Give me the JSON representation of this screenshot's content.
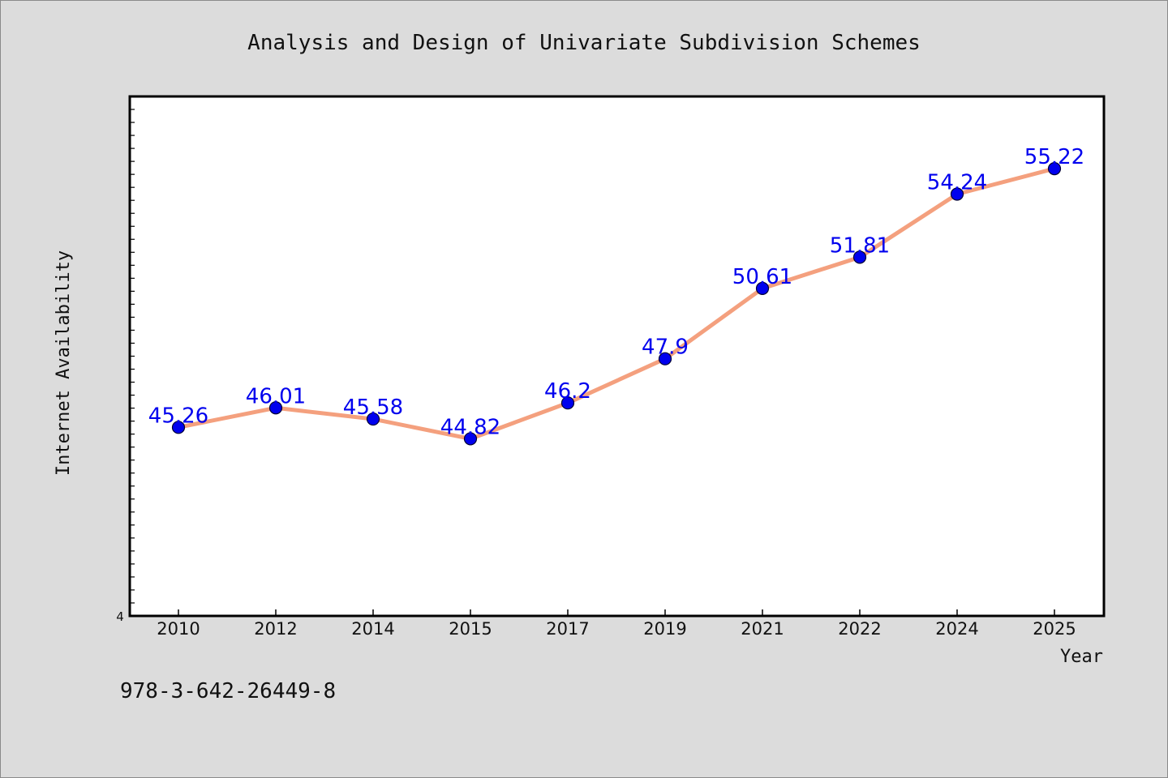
{
  "chart_data": {
    "type": "line",
    "title": "Analysis and Design of Univariate Subdivision Schemes",
    "xlabel": "Year",
    "ylabel": "Internet Availability",
    "categories": [
      "2010",
      "2012",
      "2014",
      "2015",
      "2017",
      "2019",
      "2021",
      "2022",
      "2024",
      "2025"
    ],
    "series": [
      {
        "values": [
          45.26,
          46.01,
          45.58,
          44.82,
          46.2,
          47.9,
          50.61,
          51.81,
          54.24,
          55.22
        ],
        "labels": [
          "45.26",
          "46.01",
          "45.58",
          "44.82",
          "46.2",
          "47.9",
          "50.61",
          "51.81",
          "54.24",
          "55.22"
        ]
      }
    ],
    "ylim": [
      38.0,
      58.0
    ],
    "ymin_tick_label": "4",
    "grid": false,
    "legend": "none"
  },
  "footer": {
    "isbn": "978-3-642-26449-8"
  },
  "colors": {
    "line": "#f4a07e",
    "marker_fill": "#0000ee",
    "marker_edge": "#000033",
    "data_label": "#0000ee",
    "plot_bg": "#ffffff",
    "figure_bg": "#dcdcdc"
  }
}
